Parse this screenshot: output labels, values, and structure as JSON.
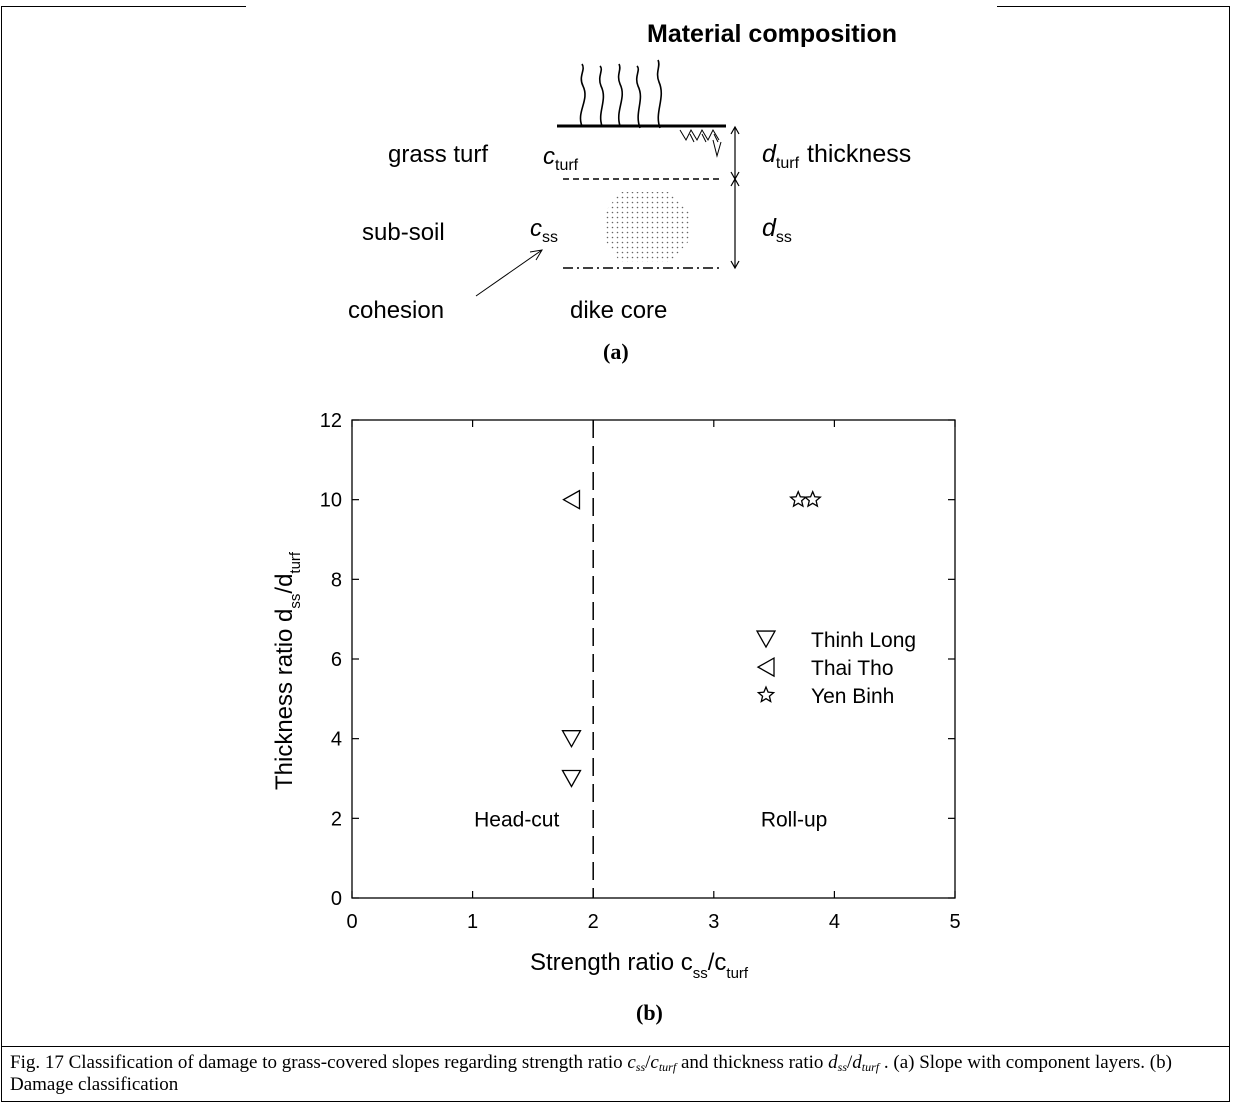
{
  "figure_a": {
    "title": "Material composition",
    "label": "(a)",
    "layer_names": {
      "turf": "grass turf",
      "subsoil": "sub-soil",
      "core": "dike core",
      "cohesion": "cohesion"
    },
    "symbols": {
      "c": "c",
      "turf_sub": "turf",
      "ss_sub": "ss",
      "d": "d",
      "thickness": "thickness"
    }
  },
  "figure_b": {
    "label": "(b)"
  },
  "chart_data": {
    "type": "scatter",
    "xlabel": "Strength ratio c",
    "xlabel_sub1": "ss",
    "xlabel_mid": "/c",
    "xlabel_sub2": "turf",
    "ylabel": "Thickness ratio d",
    "ylabel_sub1": "ss",
    "ylabel_mid": "/d",
    "ylabel_sub2": "turf",
    "xlim": [
      0,
      5
    ],
    "ylim": [
      0,
      12
    ],
    "xticks": [
      0,
      1,
      2,
      3,
      4,
      5
    ],
    "yticks": [
      0,
      2,
      4,
      6,
      8,
      10,
      12
    ],
    "grid": false,
    "legend_position": "right-middle",
    "series": [
      {
        "name": "Thinh Long",
        "marker": "triangle-down",
        "points": [
          [
            1.82,
            4.0
          ],
          [
            1.82,
            3.0
          ]
        ]
      },
      {
        "name": "Thai Tho",
        "marker": "triangle-left",
        "points": [
          [
            1.82,
            10.0
          ]
        ]
      },
      {
        "name": "Yen Binh",
        "marker": "star",
        "points": [
          [
            3.7,
            10.0
          ],
          [
            3.82,
            10.0
          ]
        ]
      }
    ],
    "threshold_line": {
      "x": 2,
      "style": "dashed"
    },
    "region_labels": [
      {
        "text": "Head-cut",
        "x": 1.2,
        "y": 2
      },
      {
        "text": "Roll-up",
        "x": 3.5,
        "y": 2
      }
    ]
  },
  "caption": {
    "prefix": "Fig. 17 Classification of damage to grass-covered slopes regarding strength ratio ",
    "r1_num": "c",
    "r1_num_sub": "ss",
    "r1_den": "c",
    "r1_den_sub": "turf",
    "mid": " and thickness ratio ",
    "r2_num": "d",
    "r2_num_sub": "ss",
    "r2_den": "d",
    "r2_den_sub": "turf",
    "suffix": " . (a) Slope with component layers. (b) Damage classification"
  }
}
